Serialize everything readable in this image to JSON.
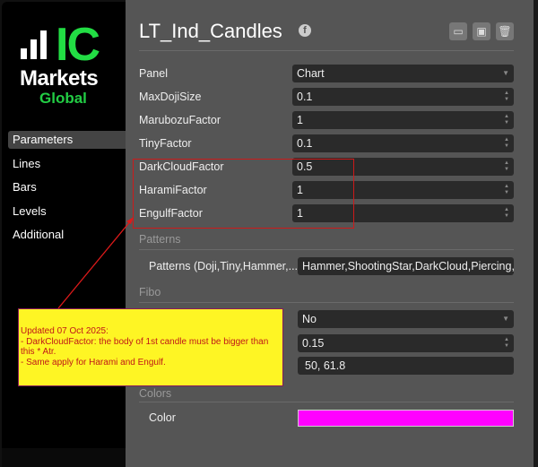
{
  "brand": {
    "logo_ic": "IC",
    "logo_markets": "Markets",
    "logo_global": "Global"
  },
  "sidebar": {
    "items": [
      {
        "label": "Parameters",
        "active": true
      },
      {
        "label": "Lines"
      },
      {
        "label": "Bars"
      },
      {
        "label": "Levels"
      },
      {
        "label": "Additional"
      }
    ]
  },
  "header": {
    "title": "LT_Ind_Candles",
    "icons": [
      "facebook-icon",
      "folder-open-icon",
      "save-icon",
      "trash-icon"
    ]
  },
  "params": [
    {
      "label": "Panel",
      "value": "Chart",
      "type": "select"
    },
    {
      "label": "MaxDojiSize",
      "value": "0.1",
      "type": "number"
    },
    {
      "label": "MarubozuFactor",
      "value": "1",
      "type": "number"
    },
    {
      "label": "TinyFactor",
      "value": "0.1",
      "type": "number"
    },
    {
      "label": "DarkCloudFactor",
      "value": "0.5",
      "type": "number"
    },
    {
      "label": "HaramiFactor",
      "value": "1",
      "type": "number"
    },
    {
      "label": "EngulfFactor",
      "value": "1",
      "type": "number"
    }
  ],
  "patterns": {
    "section": "Patterns",
    "label": "Patterns (Doji,Tiny,Hammer,...",
    "value": "Hammer,ShootingStar,DarkCloud,Piercing,H"
  },
  "fibo": {
    "section": "Fibo",
    "select_value": "No",
    "number_value": "0.15",
    "levels_value": "50, 61.8"
  },
  "colors": {
    "section": "Colors",
    "label": "Color",
    "value": "#ff00ff"
  },
  "note": {
    "text": "Updated 07 Oct 2025:\n- DarkCloudFactor: the body of 1st candle must be bigger than this * Atr.\n- Same apply for Harami and Engulf."
  },
  "annotation_colors": {
    "highlight": "#cc1a1a",
    "note_bg": "#fef524",
    "note_text": "#c01818"
  }
}
